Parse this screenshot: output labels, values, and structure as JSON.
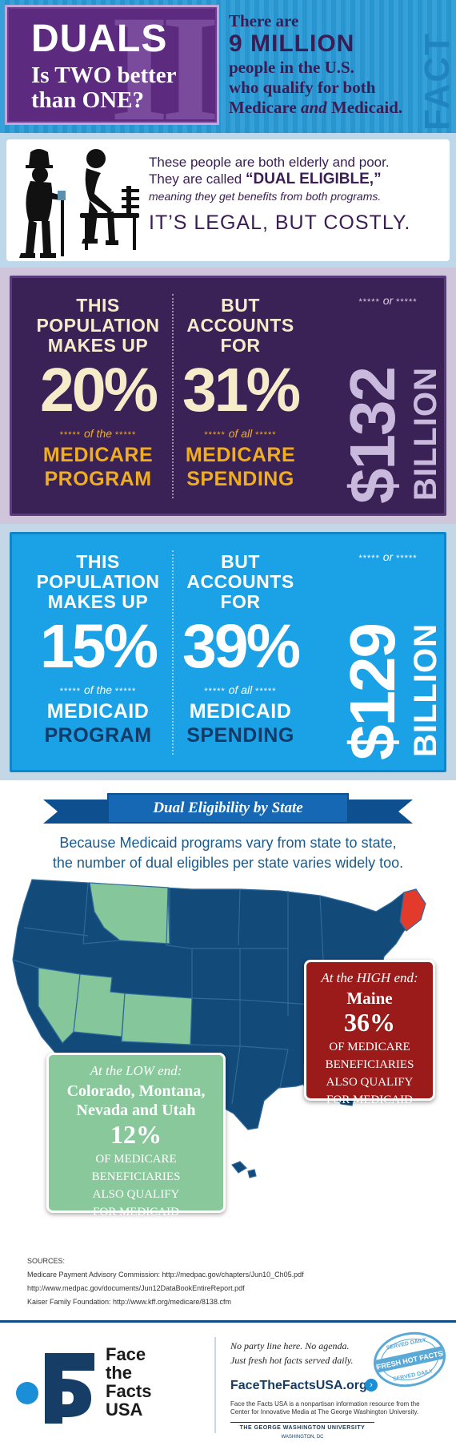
{
  "header": {
    "roman": "II",
    "title": "DUALS",
    "subtitle_l1": "Is TWO better",
    "subtitle_l2": "than ONE?",
    "right_l1": "There are",
    "right_big": "9 MILLION",
    "right_l3": "people in the U.S.",
    "right_l4a": "who qualify for both",
    "right_l5a": "Medicare",
    "right_l5b": "and",
    "right_l5c": "Medicaid.",
    "side_word": "FACT"
  },
  "intro": {
    "line1": "These people are both elderly and poor.",
    "line2a": "They are called",
    "line2b": "“DUAL ELIGIBLE,”",
    "line3": "meaning they get benefits from both programs.",
    "line4": "IT’S LEGAL, BUT COSTLY."
  },
  "medicare": {
    "head1": "THIS",
    "head2": "POPULATION",
    "head3": "MAKES UP",
    "pct1": "20%",
    "mid1_stars": "*****",
    "mid1": "of the",
    "bot1a": "MEDICARE",
    "bot1b": "PROGRAM",
    "head4": "BUT",
    "head5": "ACCOUNTS",
    "head6": "FOR",
    "pct2": "31%",
    "mid2": "of all",
    "bot2a": "MEDICARE",
    "bot2b": "SPENDING",
    "or_stars": "*****",
    "or": "or",
    "amount": "$132",
    "amount_unit": "BILLION"
  },
  "medicaid": {
    "head1": "THIS",
    "head2": "POPULATION",
    "head3": "MAKES UP",
    "pct1": "15%",
    "mid1_stars": "*****",
    "mid1": "of the",
    "bot1a": "MEDICAID",
    "bot1b": "PROGRAM",
    "head4": "BUT",
    "head5": "ACCOUNTS",
    "head6": "FOR",
    "pct2": "39%",
    "mid2": "of all",
    "bot2a": "MEDICAID",
    "bot2b": "SPENDING",
    "or_stars": "*****",
    "or": "or",
    "amount": "$129",
    "amount_unit": "BILLION"
  },
  "map": {
    "ribbon": "Dual Eligibility by State",
    "desc1": "Because Medicaid programs vary from state to state,",
    "desc2": "the number of dual eligibles per state varies widely too.",
    "high_end": "At the HIGH end:",
    "high_state": "Maine",
    "high_pct": "36%",
    "high_d1": "OF MEDICARE",
    "high_d2": "BENEFICIARIES",
    "high_d3": "ALSO QUALIFY",
    "high_d4": "FOR MEDICAID",
    "low_end": "At the LOW end:",
    "low_s1": "Colorado, Montana,",
    "low_s2": "Nevada and Utah",
    "low_pct": "12%",
    "low_d1": "OF MEDICARE",
    "low_d2": "BENEFICIARIES",
    "low_d3": "ALSO QUALIFY",
    "low_d4": "FOR MEDICAID",
    "colors": {
      "map": "#124a7a",
      "low": "#85c79b",
      "high": "#e23b2c"
    }
  },
  "sources": {
    "label": "SOURCES:",
    "s1": "Medicare Payment Advisory Commission: http://medpac.gov/chapters/Jun10_Ch05.pdf",
    "s2": "http://www.medpac.gov/documents/Jun12DataBookEntireReport.pdf",
    "s3": "Kaiser Family Foundation: http://www.kff.org/medicare/8138.cfm"
  },
  "footer": {
    "logo1": "Face",
    "logo2": "the",
    "logo3": "Facts",
    "logo4": "USA",
    "tag1": "No party line here. No agenda.",
    "tag2": "Just fresh hot facts served daily.",
    "site": "FaceTheFactsUSA.org",
    "note": "Face the Facts USA is a nonpartisan information resource from the Center for Innovative Media at The George Washington University.",
    "gwu": "THE GEORGE WASHINGTON UNIVERSITY",
    "gwu2": "WASHINGTON, DC",
    "stamp_top": "SERVED DAILY",
    "stamp_mid": "FRESH HOT FACTS",
    "stamp_bot": "SERVED DAILY"
  }
}
